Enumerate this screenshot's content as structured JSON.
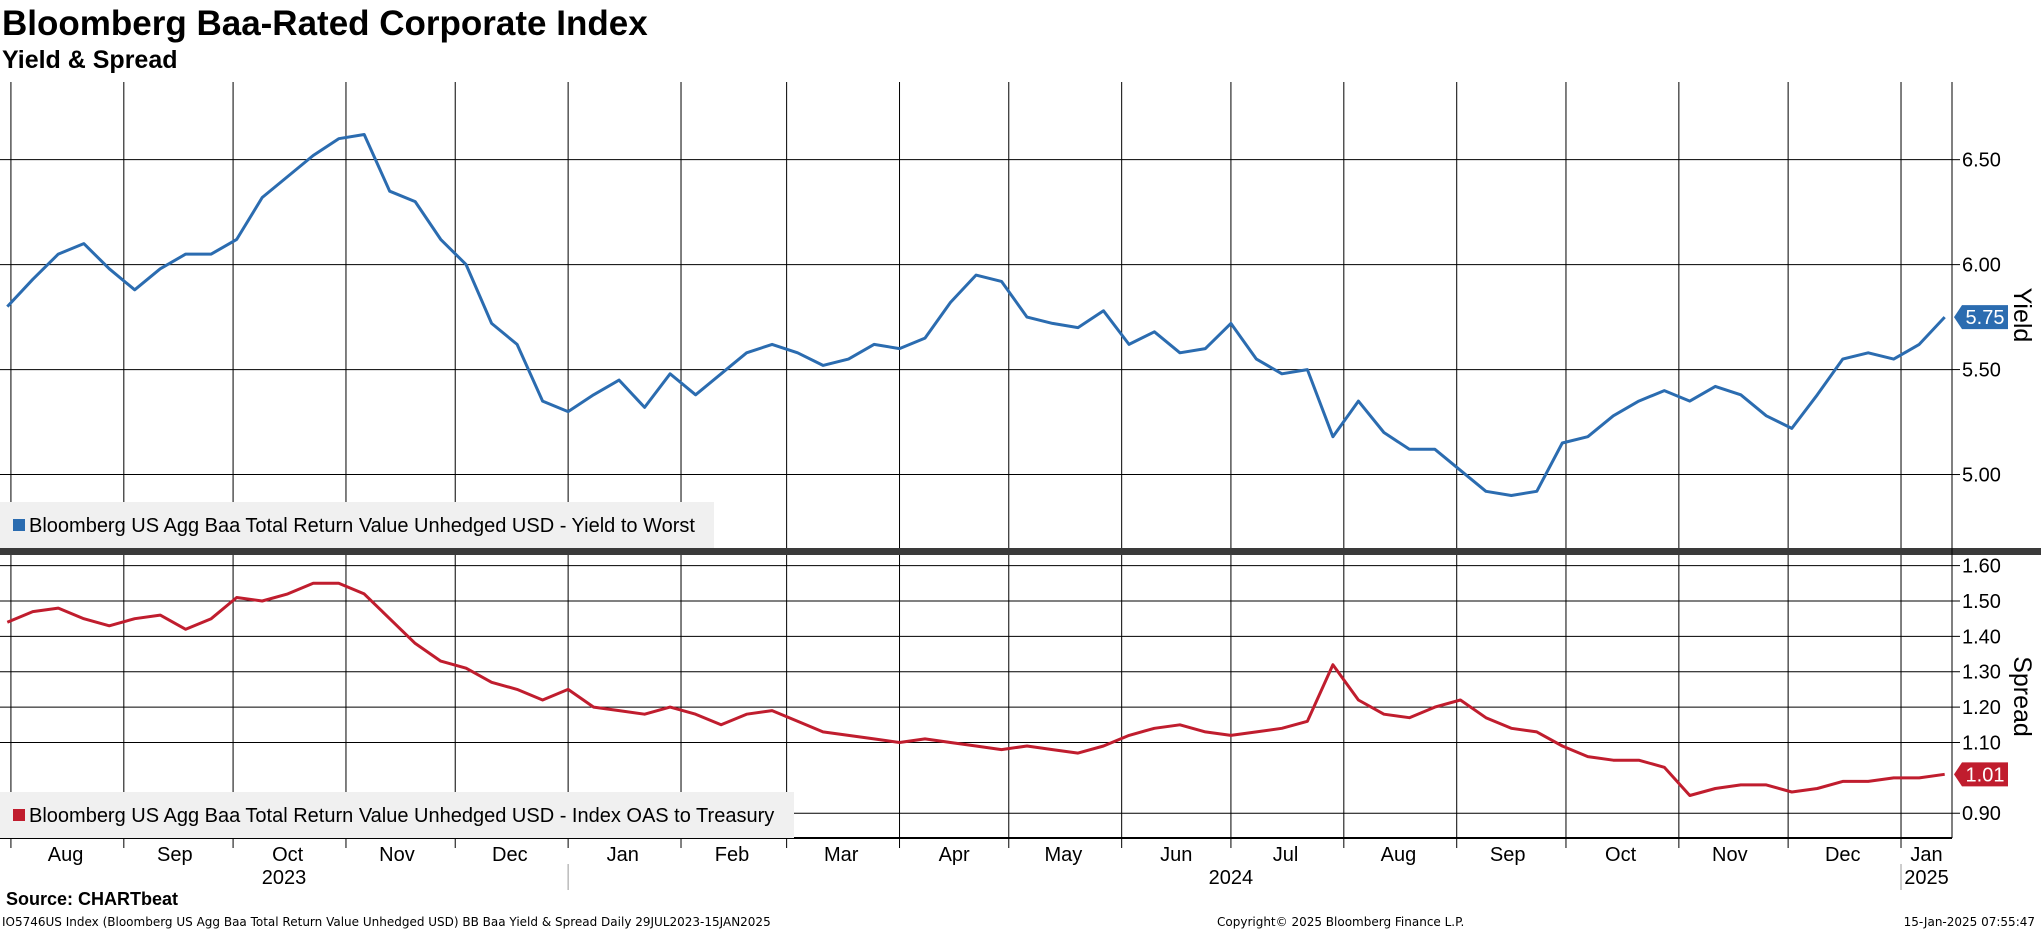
{
  "header": {
    "title": "Bloomberg Baa-Rated Corporate Index",
    "subtitle": "Yield & Spread"
  },
  "footer": {
    "source": "Source: CHARTbeat",
    "description": "IO5746US Index (Bloomberg US Agg Baa Total Return Value Unhedged USD) BB Baa Yield & Spread  Daily 29JUL2023-15JAN2025",
    "copyright": "Copyright© 2025 Bloomberg Finance L.P.",
    "timestamp": "15-Jan-2025 07:55:47"
  },
  "chart_data": [
    {
      "type": "line",
      "panel": "top",
      "ylabel": "Yield",
      "ylim": [
        4.65,
        6.87
      ],
      "yticks": [
        "5.00",
        "5.50",
        "6.00",
        "6.50"
      ],
      "last_value_label": "5.75",
      "legend_position": "bottom-left",
      "grid": true,
      "series": [
        {
          "name": "Bloomberg US Agg Baa Total Return Value Unhedged USD - Yield to Worst",
          "color": "#2b6cb0",
          "x": [
            "2023-07-31",
            "2023-08-07",
            "2023-08-14",
            "2023-08-21",
            "2023-08-28",
            "2023-09-04",
            "2023-09-11",
            "2023-09-18",
            "2023-09-25",
            "2023-10-02",
            "2023-10-09",
            "2023-10-16",
            "2023-10-23",
            "2023-10-30",
            "2023-11-06",
            "2023-11-13",
            "2023-11-20",
            "2023-11-27",
            "2023-12-04",
            "2023-12-11",
            "2023-12-18",
            "2023-12-25",
            "2024-01-01",
            "2024-01-08",
            "2024-01-15",
            "2024-01-22",
            "2024-01-29",
            "2024-02-05",
            "2024-02-12",
            "2024-02-19",
            "2024-02-26",
            "2024-03-04",
            "2024-03-11",
            "2024-03-18",
            "2024-03-25",
            "2024-04-01",
            "2024-04-08",
            "2024-04-15",
            "2024-04-22",
            "2024-04-29",
            "2024-05-06",
            "2024-05-13",
            "2024-05-20",
            "2024-05-27",
            "2024-06-03",
            "2024-06-10",
            "2024-06-17",
            "2024-06-24",
            "2024-07-01",
            "2024-07-08",
            "2024-07-15",
            "2024-07-22",
            "2024-07-29",
            "2024-08-05",
            "2024-08-12",
            "2024-08-19",
            "2024-08-26",
            "2024-09-02",
            "2024-09-09",
            "2024-09-16",
            "2024-09-23",
            "2024-09-30",
            "2024-10-07",
            "2024-10-14",
            "2024-10-21",
            "2024-10-28",
            "2024-11-04",
            "2024-11-11",
            "2024-11-18",
            "2024-11-25",
            "2024-12-02",
            "2024-12-09",
            "2024-12-16",
            "2024-12-23",
            "2024-12-30",
            "2025-01-06",
            "2025-01-13"
          ],
          "values": [
            5.8,
            5.93,
            6.05,
            6.1,
            5.98,
            5.88,
            5.98,
            6.05,
            6.05,
            6.12,
            6.32,
            6.42,
            6.52,
            6.6,
            6.62,
            6.35,
            6.3,
            6.12,
            6.0,
            5.72,
            5.62,
            5.35,
            5.3,
            5.38,
            5.45,
            5.32,
            5.48,
            5.38,
            5.48,
            5.58,
            5.62,
            5.58,
            5.52,
            5.55,
            5.62,
            5.6,
            5.65,
            5.82,
            5.95,
            5.92,
            5.75,
            5.72,
            5.7,
            5.78,
            5.62,
            5.68,
            5.58,
            5.6,
            5.72,
            5.55,
            5.48,
            5.5,
            5.18,
            5.35,
            5.2,
            5.12,
            5.12,
            5.02,
            4.92,
            4.9,
            4.92,
            5.15,
            5.18,
            5.28,
            5.35,
            5.4,
            5.35,
            5.42,
            5.38,
            5.28,
            5.22,
            5.38,
            5.55,
            5.58,
            5.55,
            5.62,
            5.75
          ]
        }
      ]
    },
    {
      "type": "line",
      "panel": "bottom",
      "ylabel": "Spread",
      "ylim": [
        0.83,
        1.63
      ],
      "yticks": [
        "0.90",
        "1.10",
        "1.20",
        "1.30",
        "1.40",
        "1.50",
        "1.60"
      ],
      "last_value_label": "1.01",
      "legend_position": "bottom-left",
      "grid": true,
      "series": [
        {
          "name": "Bloomberg US Agg Baa Total Return Value Unhedged USD - Index OAS to Treasury",
          "color": "#c01d2e",
          "x": [
            "2023-07-31",
            "2023-08-07",
            "2023-08-14",
            "2023-08-21",
            "2023-08-28",
            "2023-09-04",
            "2023-09-11",
            "2023-09-18",
            "2023-09-25",
            "2023-10-02",
            "2023-10-09",
            "2023-10-16",
            "2023-10-23",
            "2023-10-30",
            "2023-11-06",
            "2023-11-13",
            "2023-11-20",
            "2023-11-27",
            "2023-12-04",
            "2023-12-11",
            "2023-12-18",
            "2023-12-25",
            "2024-01-01",
            "2024-01-08",
            "2024-01-15",
            "2024-01-22",
            "2024-01-29",
            "2024-02-05",
            "2024-02-12",
            "2024-02-19",
            "2024-02-26",
            "2024-03-04",
            "2024-03-11",
            "2024-03-18",
            "2024-03-25",
            "2024-04-01",
            "2024-04-08",
            "2024-04-15",
            "2024-04-22",
            "2024-04-29",
            "2024-05-06",
            "2024-05-13",
            "2024-05-20",
            "2024-05-27",
            "2024-06-03",
            "2024-06-10",
            "2024-06-17",
            "2024-06-24",
            "2024-07-01",
            "2024-07-08",
            "2024-07-15",
            "2024-07-22",
            "2024-07-29",
            "2024-08-05",
            "2024-08-12",
            "2024-08-19",
            "2024-08-26",
            "2024-09-02",
            "2024-09-09",
            "2024-09-16",
            "2024-09-23",
            "2024-09-30",
            "2024-10-07",
            "2024-10-14",
            "2024-10-21",
            "2024-10-28",
            "2024-11-04",
            "2024-11-11",
            "2024-11-18",
            "2024-11-25",
            "2024-12-02",
            "2024-12-09",
            "2024-12-16",
            "2024-12-23",
            "2024-12-30",
            "2025-01-06",
            "2025-01-13"
          ],
          "values": [
            1.44,
            1.47,
            1.48,
            1.45,
            1.43,
            1.45,
            1.46,
            1.42,
            1.45,
            1.51,
            1.5,
            1.52,
            1.55,
            1.55,
            1.52,
            1.45,
            1.38,
            1.33,
            1.31,
            1.27,
            1.25,
            1.22,
            1.25,
            1.2,
            1.19,
            1.18,
            1.2,
            1.18,
            1.15,
            1.18,
            1.19,
            1.16,
            1.13,
            1.12,
            1.11,
            1.1,
            1.11,
            1.1,
            1.09,
            1.08,
            1.09,
            1.08,
            1.07,
            1.09,
            1.12,
            1.14,
            1.15,
            1.13,
            1.12,
            1.13,
            1.14,
            1.16,
            1.32,
            1.22,
            1.18,
            1.17,
            1.2,
            1.22,
            1.17,
            1.14,
            1.13,
            1.09,
            1.06,
            1.05,
            1.05,
            1.03,
            0.95,
            0.97,
            0.98,
            0.98,
            0.96,
            0.97,
            0.99,
            0.99,
            1.0,
            1.0,
            1.01
          ]
        }
      ]
    }
  ],
  "xaxis": {
    "range": [
      "2023-07-29",
      "2025-01-15"
    ],
    "month_ticks": [
      {
        "label": "Aug",
        "date": "2023-08-16"
      },
      {
        "label": "Sep",
        "date": "2023-09-15"
      },
      {
        "label": "Oct",
        "date": "2023-10-16"
      },
      {
        "label": "Nov",
        "date": "2023-11-15"
      },
      {
        "label": "Dec",
        "date": "2023-12-16"
      },
      {
        "label": "Jan",
        "date": "2024-01-16"
      },
      {
        "label": "Feb",
        "date": "2024-02-15"
      },
      {
        "label": "Mar",
        "date": "2024-03-16"
      },
      {
        "label": "Apr",
        "date": "2024-04-16"
      },
      {
        "label": "May",
        "date": "2024-05-16"
      },
      {
        "label": "Jun",
        "date": "2024-06-16"
      },
      {
        "label": "Jul",
        "date": "2024-07-16"
      },
      {
        "label": "Aug",
        "date": "2024-08-16"
      },
      {
        "label": "Sep",
        "date": "2024-09-15"
      },
      {
        "label": "Oct",
        "date": "2024-10-16"
      },
      {
        "label": "Nov",
        "date": "2024-11-15"
      },
      {
        "label": "Dec",
        "date": "2024-12-16"
      },
      {
        "label": "Jan",
        "date": "2025-01-08"
      }
    ],
    "month_gridlines": [
      "2023-08-01",
      "2023-09-01",
      "2023-10-01",
      "2023-11-01",
      "2023-12-01",
      "2024-01-01",
      "2024-02-01",
      "2024-03-01",
      "2024-04-01",
      "2024-05-01",
      "2024-06-01",
      "2024-07-01",
      "2024-08-01",
      "2024-09-01",
      "2024-10-01",
      "2024-11-01",
      "2024-12-01",
      "2025-01-01"
    ],
    "year_ticks": [
      {
        "label": "2023",
        "date": "2023-10-15"
      },
      {
        "label": "2024",
        "date": "2024-07-01"
      },
      {
        "label": "2025",
        "date": "2025-01-08"
      }
    ],
    "year_dividers": [
      "2024-01-01",
      "2025-01-01"
    ]
  }
}
